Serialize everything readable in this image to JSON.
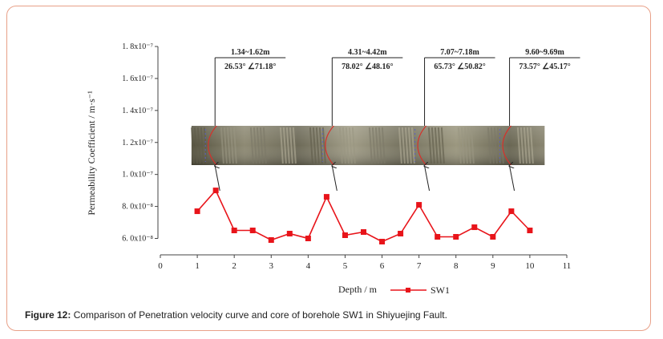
{
  "figure": {
    "caption_label": "Figure 12:",
    "caption_text": " Comparison of Penetration velocity curve and core of borehole SW1 in Shiyuejing Fault."
  },
  "chart_data": {
    "type": "line",
    "xlabel": "Depth / m",
    "ylabel": "Permeability Coefficient / m·s⁻¹",
    "xlim": [
      0,
      11
    ],
    "ylim": [
      5.5e-08,
      1.8e-07
    ],
    "x_ticks": [
      "0",
      "1",
      "2",
      "3",
      "4",
      "5",
      "6",
      "7",
      "8",
      "9",
      "10",
      "11"
    ],
    "y_ticks": [
      {
        "value": 6e-08,
        "label": "6. 0x10⁻⁸"
      },
      {
        "value": 8e-08,
        "label": "8. 0x10⁻⁸"
      },
      {
        "value": 1e-07,
        "label": "1. 0x10⁻⁷"
      },
      {
        "value": 1.2e-07,
        "label": "1. 2x10⁻⁷"
      },
      {
        "value": 1.4e-07,
        "label": "1. 4x10⁻⁷"
      },
      {
        "value": 1.6e-07,
        "label": "1. 6x10⁻⁷"
      },
      {
        "value": 1.8e-07,
        "label": "1. 8x10⁻⁷"
      }
    ],
    "series": [
      {
        "name": "SW1",
        "color": "#e8141a",
        "marker": "square",
        "x": [
          1.0,
          1.5,
          2.0,
          2.5,
          3.0,
          3.5,
          4.0,
          4.5,
          5.0,
          5.5,
          6.0,
          6.5,
          7.0,
          7.5,
          8.0,
          8.5,
          9.0,
          9.5,
          10.0
        ],
        "y": [
          7.7e-08,
          9e-08,
          6.5e-08,
          6.5e-08,
          5.9e-08,
          6.3e-08,
          6e-08,
          8.6e-08,
          6.2e-08,
          6.4e-08,
          5.8e-08,
          6.3e-08,
          8.1e-08,
          6.1e-08,
          6.1e-08,
          6.7e-08,
          6.1e-08,
          7.7e-08,
          6.5e-08
        ]
      }
    ],
    "legend": {
      "position": "bottom-center",
      "label": "SW1"
    },
    "core_image": {
      "depth_range": [
        0.8,
        10.4
      ],
      "colors": [
        "#5f5c4a",
        "#9a9682",
        "#7b7867",
        "#b3ae98"
      ]
    },
    "annotations": [
      {
        "depth_label": "1.34~1.62m",
        "angles": "26.53°  ∠71.18°",
        "arrow_depth": 1.48
      },
      {
        "depth_label": "4.31~4.42m",
        "angles": "78.02°  ∠48.16°",
        "arrow_depth": 4.65
      },
      {
        "depth_label": "7.07~7.18m",
        "angles": "65.73°  ∠50.82°",
        "arrow_depth": 7.15
      },
      {
        "depth_label": "9.60~9.69m",
        "angles": "73.57°  ∠45.17°",
        "arrow_depth": 9.45
      }
    ],
    "grid": false
  }
}
